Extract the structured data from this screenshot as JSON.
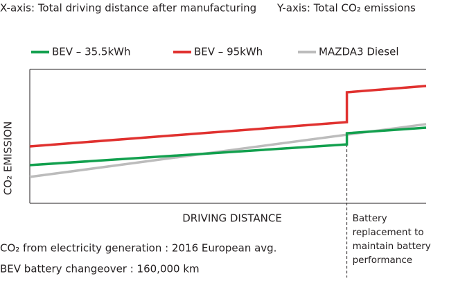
{
  "chart_data": {
    "type": "line",
    "x_note": "X-axis: Total driving distance after manufacturing",
    "y_note": "Y-axis: Total CO₂ emissions",
    "xlabel": "DRIVING DISTANCE",
    "ylabel": "CO₂ EMISSION",
    "xlim": [
      0,
      200000
    ],
    "ylim": [
      0,
      100
    ],
    "series": [
      {
        "name": "BEV – 35.5kWh",
        "color": "#12a04e",
        "x": [
          0,
          160000,
          160000,
          200000
        ],
        "values": [
          28.5,
          44,
          52.3,
          56.5
        ]
      },
      {
        "name": "BEV – 95kWh",
        "color": "#e0312f",
        "x": [
          0,
          160000,
          160000,
          200000
        ],
        "values": [
          42.5,
          60.6,
          82.9,
          87.6
        ]
      },
      {
        "name": "MAZDA3 Diesel",
        "color": "#bcbcbc",
        "x": [
          0,
          200000
        ],
        "values": [
          19.7,
          59.1
        ]
      }
    ],
    "annotation": [
      "Battery",
      "replacement to",
      "maintain battery",
      "performance"
    ],
    "notes": [
      "CO₂ from electricity generation : 2016 European avg.",
      "BEV battery changeover : 160,000 km"
    ]
  }
}
